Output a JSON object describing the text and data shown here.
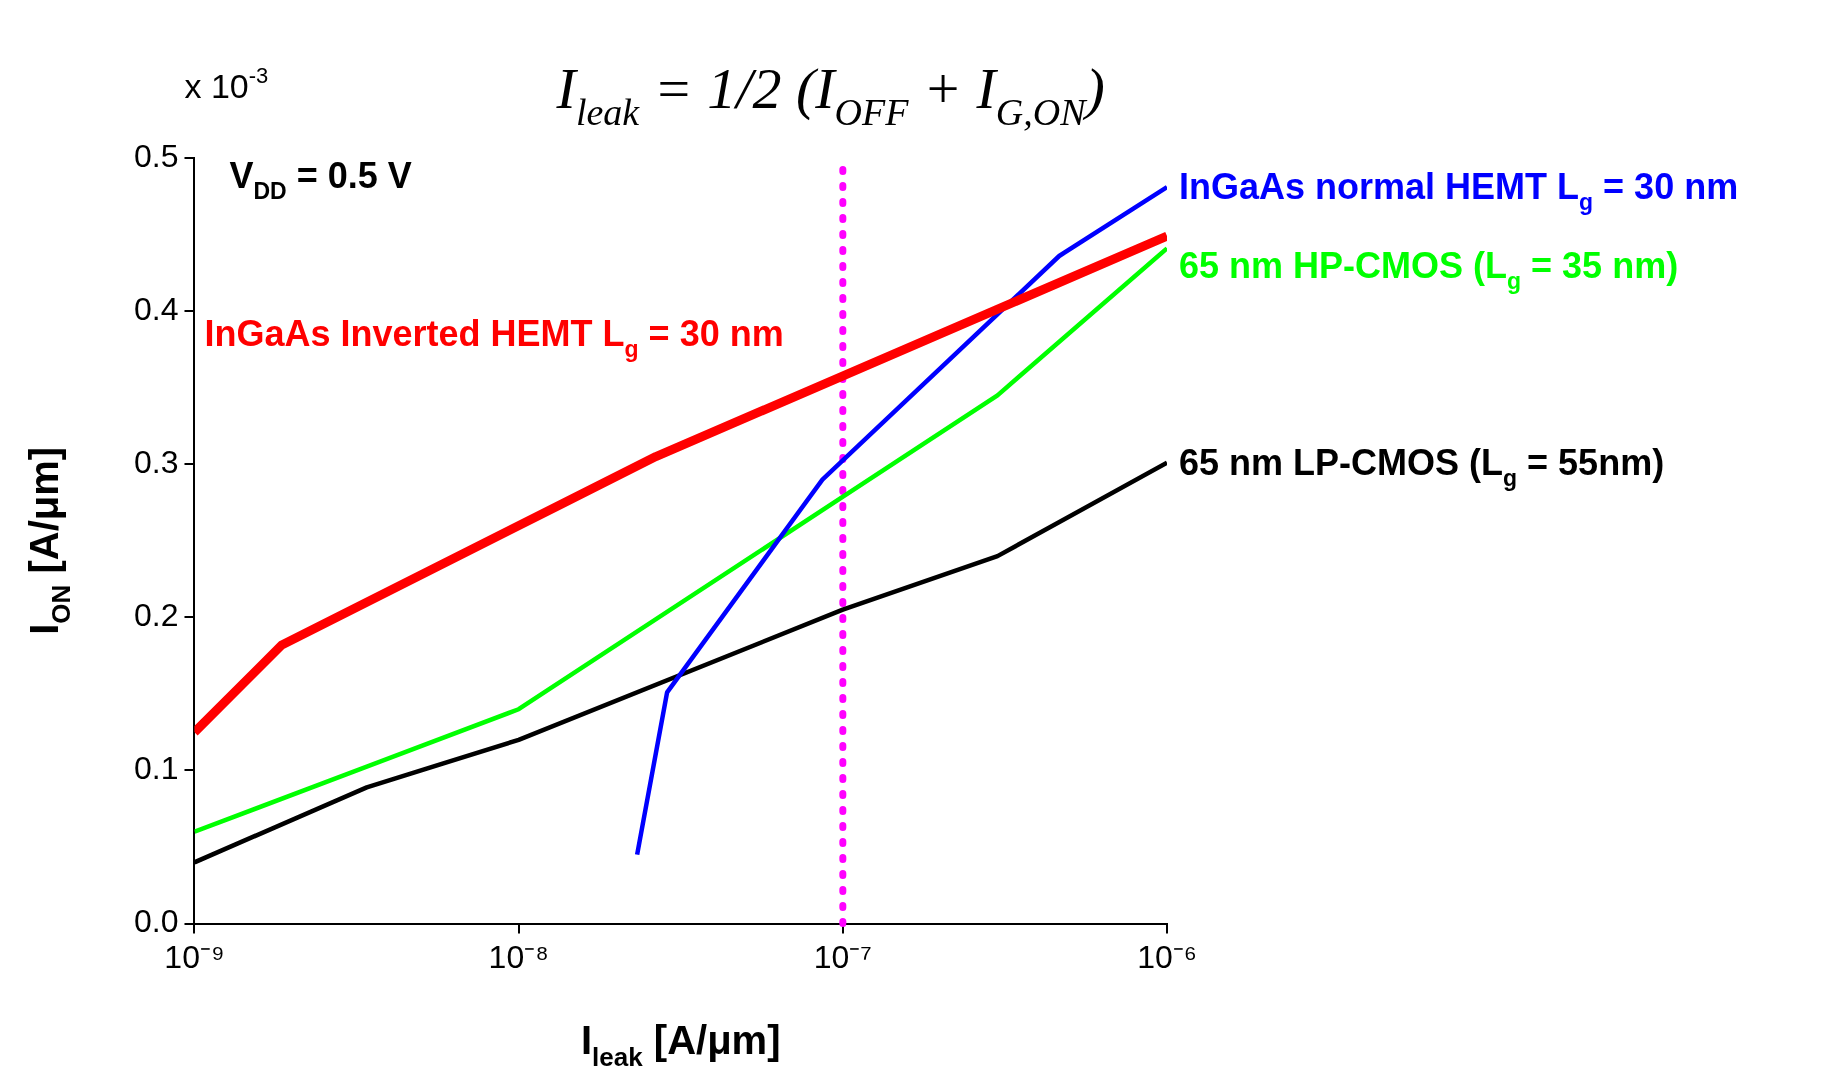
{
  "chart_data": {
    "type": "line",
    "title": "I$_{leak}$ = 1/2 (I$_{OFF}$ + I$_{G,ON}$)",
    "xlabel": "I$_{leak}$ [A/μm]",
    "ylabel": "I$_{ON}$ [A/μm]",
    "annotations": [
      "x 10$^{-3}$",
      "V$_{DD}$ = 0.5 V"
    ],
    "log": "x",
    "grid": false,
    "legend": false,
    "marker": "none",
    "line_style": "solid",
    "xlim": [
      1e-09,
      1e-06
    ],
    "xticks": [
      {
        "value": 1e-09,
        "label": "10⁻⁹"
      },
      {
        "value": 1e-08,
        "label": "10⁻⁸"
      },
      {
        "value": 1e-07,
        "label": "10⁻⁷"
      },
      {
        "value": 1e-06,
        "label": "10⁻⁶"
      }
    ],
    "ylim": [
      0,
      0.5
    ],
    "yticks": [
      {
        "value": 0,
        "label": "0.0"
      },
      {
        "value": 0.1,
        "label": "0.1"
      },
      {
        "value": 0.2,
        "label": "0.2"
      },
      {
        "value": 0.3,
        "label": "0.3"
      },
      {
        "value": 0.4,
        "label": "0.4"
      },
      {
        "value": 0.5,
        "label": "0.5"
      }
    ],
    "ref_lines": [
      {
        "axis": "x",
        "value": 1e-07,
        "color": "#ff00ff",
        "line_style": "dotted"
      }
    ],
    "series": [
      {
        "name": "InGaAs Inverted HEMT L$_{g}$ = 30 nm",
        "color": "#ff0000",
        "x": [
          1e-09,
          1.86e-09,
          2.65e-08,
          1e-06
        ],
        "values": [
          0.125,
          0.182,
          0.305,
          0.449
        ]
      },
      {
        "name": "InGaAs normal HEMT L$_{g}$ = 30 nm",
        "color": "#0000ff",
        "x": [
          2.32e-08,
          2.87e-08,
          8.65e-08,
          4.65e-07,
          1e-06
        ],
        "values": [
          0.045,
          0.151,
          0.29,
          0.436,
          0.481
        ]
      },
      {
        "name": "65 nm HP-CMOS (L$_{g}$ = 35 nm)",
        "color": "#00ff00",
        "x": [
          1e-09,
          1e-08,
          3e-07,
          1e-06
        ],
        "values": [
          0.06,
          0.14,
          0.345,
          0.441
        ]
      },
      {
        "name": "65 nm LP-CMOS (L$_{g}$ = 55nm)",
        "color": "#000000",
        "x": [
          1e-09,
          3.4e-09,
          1e-08,
          1e-07,
          3e-07,
          1e-06
        ],
        "values": [
          0.04,
          0.089,
          0.12,
          0.205,
          0.24,
          0.301
        ]
      }
    ]
  }
}
